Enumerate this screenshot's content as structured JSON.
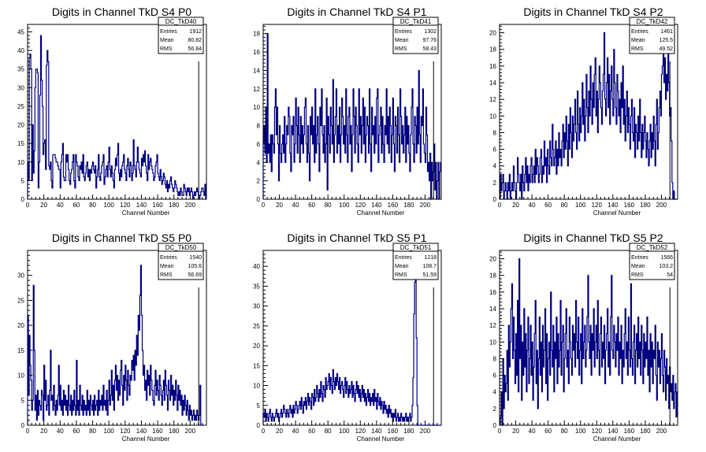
{
  "chart_data": [
    {
      "type": "histogram",
      "title": "Digits in Channel TkD S4 P0",
      "xlabel": "Channel Number",
      "xlim": [
        0,
        220
      ],
      "ylim": [
        0,
        47
      ],
      "xticks": [
        0,
        20,
        40,
        60,
        80,
        100,
        120,
        140,
        160,
        180,
        200
      ],
      "yticks": [
        0,
        5,
        10,
        15,
        20,
        25,
        30,
        35,
        40,
        45
      ],
      "stats": {
        "name": "DC_TkD40",
        "entries": "1912",
        "mean": "80.82",
        "rms": "56.84"
      },
      "values": [
        10,
        5,
        38,
        39,
        35,
        5,
        20,
        7,
        13,
        30,
        35,
        35,
        34,
        3,
        10,
        28,
        44,
        32,
        25,
        12,
        15,
        16,
        8,
        36,
        40,
        37,
        9,
        8,
        10,
        5,
        3,
        12,
        12,
        12,
        11,
        10,
        10,
        9,
        8,
        8,
        3,
        10,
        12,
        15,
        6,
        5,
        5,
        12,
        10,
        12,
        8,
        5,
        4,
        7,
        8,
        10,
        12,
        5,
        3,
        12,
        10,
        9,
        6,
        5,
        9,
        8,
        10,
        7,
        12,
        6,
        5,
        7,
        9,
        10,
        6,
        8,
        5,
        8,
        7,
        9,
        10,
        8,
        7,
        9,
        3,
        6,
        8,
        12,
        6,
        5,
        7,
        9,
        10,
        12,
        4,
        6,
        8,
        9,
        6,
        10,
        14,
        8,
        6,
        9,
        7,
        5,
        3,
        8,
        11,
        9,
        12,
        15,
        7,
        5,
        8,
        6,
        9,
        10,
        12,
        8,
        7,
        5,
        9,
        11,
        8,
        6,
        10,
        9,
        5,
        7,
        16,
        9,
        8,
        6,
        10,
        14,
        10,
        8,
        7,
        6,
        11,
        9,
        12,
        10,
        13,
        9,
        7,
        5,
        12,
        8,
        10,
        11,
        9,
        8,
        7,
        5,
        6,
        9,
        10,
        12,
        7,
        6,
        5,
        8,
        6,
        4,
        5,
        7,
        6,
        4,
        3,
        5,
        2,
        4,
        3,
        5,
        6,
        4,
        3,
        2,
        3,
        5,
        4,
        3,
        2,
        1,
        2,
        1,
        3,
        2,
        1,
        1,
        4,
        3,
        2,
        1,
        3,
        2,
        3,
        1,
        2,
        3,
        2,
        0,
        1,
        2,
        1,
        2,
        3,
        2,
        1,
        0,
        1,
        2,
        3,
        3,
        2,
        1,
        4,
        0
      ],
      "mark_x": 210
    },
    {
      "type": "histogram",
      "title": "Digits in Channel TkD S4 P1",
      "xlabel": "Channel Number",
      "xlim": [
        0,
        220
      ],
      "ylim": [
        0,
        19
      ],
      "xticks": [
        0,
        20,
        40,
        60,
        80,
        100,
        120,
        140,
        160,
        180,
        200
      ],
      "yticks": [
        0,
        2,
        4,
        6,
        8,
        10,
        12,
        14,
        16,
        18
      ],
      "stats": {
        "name": "DC_TkD41",
        "entries": "1302",
        "mean": "97.76",
        "rms": "58.43"
      },
      "values": [
        6,
        8,
        5,
        10,
        4,
        18,
        5,
        6,
        4,
        7,
        3,
        7,
        6,
        5,
        10,
        12,
        7,
        10,
        6,
        2,
        8,
        5,
        4,
        6,
        7,
        5,
        9,
        4,
        6,
        8,
        7,
        10,
        9,
        5,
        3,
        8,
        7,
        9,
        4,
        6,
        11,
        8,
        5,
        10,
        7,
        4,
        9,
        6,
        8,
        5,
        7,
        10,
        11,
        6,
        4,
        8,
        5,
        2,
        9,
        7,
        10,
        6,
        8,
        4,
        12,
        5,
        7,
        9,
        6,
        3,
        10,
        8,
        12,
        7,
        5,
        8,
        4,
        6,
        11,
        1,
        9,
        7,
        5,
        10,
        8,
        6,
        13,
        4,
        7,
        9,
        12,
        5,
        8,
        6,
        10,
        4,
        7,
        11,
        9,
        6,
        8,
        5,
        12,
        7,
        4,
        9,
        10,
        6,
        8,
        3,
        7,
        12,
        9,
        5,
        10,
        8,
        6,
        4,
        12,
        7,
        9,
        5,
        8,
        11,
        6,
        10,
        4,
        7,
        9,
        8,
        5,
        12,
        6,
        3,
        10,
        7,
        8,
        5,
        9,
        6,
        11,
        12,
        4,
        7,
        8,
        10,
        5,
        9,
        6,
        4,
        8,
        7,
        12,
        6,
        9,
        5,
        10,
        8,
        4,
        7,
        11,
        6,
        3,
        9,
        8,
        5,
        10,
        7,
        4,
        12,
        9,
        6,
        8,
        5,
        7,
        10,
        4,
        9,
        6,
        8,
        5,
        3,
        7,
        10,
        12,
        6,
        4,
        9,
        8,
        5,
        10,
        6,
        14,
        7,
        4,
        9,
        8,
        12,
        6,
        5,
        4,
        10,
        7,
        3,
        4,
        2,
        5,
        0,
        4,
        2,
        3,
        6,
        1,
        4,
        0,
        2,
        4,
        0,
        3,
        4
      ],
      "mark_x": 210
    },
    {
      "type": "histogram",
      "title": "Digits in Channel TkD S4 P2",
      "xlabel": "Channel Number",
      "xlim": [
        0,
        220
      ],
      "ylim": [
        0,
        21
      ],
      "xticks": [
        0,
        20,
        40,
        60,
        80,
        100,
        120,
        140,
        160,
        180,
        200
      ],
      "yticks": [
        0,
        2,
        4,
        6,
        8,
        10,
        12,
        14,
        16,
        18,
        20
      ],
      "stats": {
        "name": "DC_TkD42",
        "entries": "1461",
        "mean": "125.5",
        "rms": "49.52"
      },
      "values": [
        0,
        3,
        1,
        2,
        3,
        0,
        1,
        2,
        1,
        0,
        2,
        1,
        3,
        0,
        1,
        2,
        1,
        4,
        2,
        1,
        0,
        2,
        5,
        3,
        2,
        1,
        3,
        0,
        4,
        2,
        1,
        3,
        5,
        2,
        4,
        1,
        3,
        2,
        4,
        5,
        2,
        3,
        4,
        2,
        6,
        3,
        5,
        4,
        2,
        3,
        5,
        6,
        2,
        4,
        3,
        7,
        4,
        5,
        2,
        6,
        4,
        3,
        7,
        5,
        4,
        9,
        6,
        4,
        5,
        7,
        3,
        6,
        4,
        8,
        5,
        6,
        4,
        7,
        9,
        5,
        8,
        6,
        10,
        7,
        4,
        9,
        6,
        11,
        8,
        5,
        10,
        7,
        9,
        12,
        8,
        6,
        13,
        9,
        7,
        11,
        8,
        10,
        14,
        9,
        12,
        7,
        10,
        15,
        11,
        8,
        13,
        10,
        16,
        12,
        9,
        14,
        11,
        15,
        17,
        10,
        13,
        8,
        12,
        16,
        14,
        11,
        9,
        13,
        15,
        20,
        12,
        10,
        14,
        17,
        11,
        15,
        9,
        13,
        16,
        12,
        10,
        18,
        14,
        11,
        9,
        15,
        13,
        10,
        12,
        8,
        14,
        11,
        16,
        9,
        12,
        7,
        10,
        13,
        8,
        11,
        9,
        6,
        10,
        12,
        8,
        7,
        11,
        5,
        9,
        8,
        6,
        10,
        7,
        12,
        8,
        5,
        9,
        6,
        8,
        10,
        7,
        5,
        8,
        6,
        4,
        7,
        9,
        5,
        8,
        6,
        10,
        7,
        4,
        9,
        12,
        6,
        8,
        11,
        13,
        10,
        15,
        16,
        18,
        14,
        17,
        12,
        15,
        13,
        18,
        14,
        10,
        11,
        7,
        2,
        0,
        1,
        0,
        0,
        0,
        0
      ],
      "mark_x": 210
    },
    {
      "type": "histogram",
      "title": "Digits in Channel TkD S5 P0",
      "xlabel": "Channel Number",
      "xlim": [
        0,
        220
      ],
      "ylim": [
        0,
        35
      ],
      "xticks": [
        0,
        20,
        40,
        60,
        80,
        100,
        120,
        140,
        160,
        180,
        200
      ],
      "yticks": [
        0,
        5,
        10,
        15,
        20,
        25,
        30
      ],
      "stats": {
        "name": "DC_TkD50",
        "entries": "1540",
        "mean": "105.6",
        "rms": "56.69"
      },
      "values": [
        22,
        6,
        18,
        12,
        9,
        3,
        5,
        28,
        15,
        3,
        6,
        1,
        7,
        2,
        5,
        4,
        3,
        7,
        6,
        1,
        12,
        5,
        9,
        3,
        4,
        6,
        2,
        7,
        15,
        5,
        6,
        3,
        8,
        4,
        2,
        5,
        3,
        6,
        12,
        4,
        8,
        3,
        5,
        2,
        7,
        4,
        6,
        3,
        5,
        2,
        8,
        4,
        3,
        6,
        2,
        5,
        3,
        7,
        4,
        2,
        13,
        3,
        5,
        2,
        8,
        4,
        3,
        6,
        2,
        5,
        3,
        4,
        2,
        7,
        3,
        5,
        2,
        6,
        4,
        3,
        5,
        2,
        6,
        3,
        4,
        5,
        2,
        7,
        3,
        5,
        4,
        6,
        3,
        8,
        4,
        5,
        3,
        7,
        2,
        5,
        9,
        4,
        6,
        11,
        5,
        8,
        3,
        9,
        12,
        7,
        10,
        5,
        9,
        6,
        11,
        13,
        8,
        4,
        10,
        7,
        12,
        9,
        5,
        11,
        8,
        6,
        10,
        9,
        13,
        11,
        14,
        9,
        15,
        12,
        18,
        14,
        22,
        19,
        26,
        32,
        22,
        15,
        10,
        12,
        7,
        9,
        5,
        11,
        8,
        10,
        6,
        12,
        9,
        7,
        5,
        4,
        8,
        11,
        6,
        9,
        7,
        5,
        10,
        8,
        6,
        4,
        7,
        9,
        5,
        11,
        8,
        6,
        3,
        9,
        7,
        5,
        10,
        6,
        8,
        4,
        7,
        5,
        9,
        6,
        3,
        8,
        5,
        7,
        4,
        6,
        2,
        5,
        3,
        6,
        4,
        2,
        5,
        3,
        1,
        4,
        2,
        3,
        1,
        2,
        3,
        1,
        2,
        1,
        3,
        2,
        1,
        2,
        8,
        0,
        0,
        0
      ],
      "mark_x": 210
    },
    {
      "type": "histogram",
      "title": "Digits in Channel TkD S5 P1",
      "xlabel": "Channel Number",
      "xlim": [
        0,
        220
      ],
      "ylim": [
        0,
        44
      ],
      "xticks": [
        0,
        20,
        40,
        60,
        80,
        100,
        120,
        140,
        160,
        180,
        200
      ],
      "yticks": [
        0,
        5,
        10,
        15,
        20,
        25,
        30,
        35,
        40
      ],
      "stats": {
        "name": "DC_TkD51",
        "entries": "1218",
        "mean": "108.7",
        "rms": "51.59"
      },
      "values": [
        3,
        2,
        4,
        1,
        3,
        2,
        1,
        3,
        4,
        2,
        1,
        3,
        2,
        1,
        2,
        3,
        4,
        2,
        3,
        1,
        2,
        3,
        4,
        2,
        3,
        5,
        4,
        3,
        2,
        4,
        3,
        2,
        4,
        5,
        3,
        4,
        2,
        5,
        3,
        4,
        6,
        5,
        3,
        4,
        5,
        6,
        4,
        7,
        5,
        3,
        6,
        5,
        7,
        4,
        6,
        8,
        5,
        7,
        6,
        4,
        8,
        7,
        5,
        9,
        6,
        7,
        10,
        8,
        6,
        9,
        7,
        11,
        8,
        6,
        10,
        9,
        7,
        12,
        9,
        10,
        11,
        13,
        9,
        12,
        10,
        8,
        14,
        11,
        9,
        12,
        10,
        13,
        11,
        9,
        12,
        8,
        10,
        11,
        9,
        7,
        10,
        12,
        8,
        11,
        9,
        7,
        10,
        8,
        9,
        11,
        7,
        10,
        8,
        6,
        9,
        11,
        8,
        10,
        7,
        9,
        6,
        8,
        10,
        7,
        9,
        6,
        8,
        5,
        7,
        9,
        6,
        8,
        5,
        7,
        6,
        8,
        5,
        9,
        6,
        7,
        4,
        8,
        6,
        5,
        7,
        4,
        6,
        5,
        3,
        6,
        4,
        5,
        3,
        4,
        2,
        5,
        3,
        4,
        2,
        3,
        1,
        3,
        2,
        4,
        1,
        2,
        3,
        1,
        2,
        1,
        3,
        2,
        1,
        2,
        1,
        2,
        3,
        1,
        2,
        1,
        2,
        3,
        1,
        2,
        5,
        12,
        28,
        36,
        40,
        22,
        5,
        0,
        0,
        0,
        0,
        0,
        0,
        0,
        0,
        0,
        0,
        0,
        0,
        0,
        0,
        0,
        0,
        0,
        0,
        0,
        0,
        0,
        0,
        0,
        0,
        0,
        0,
        0,
        0,
        0
      ],
      "mark_x": 210
    },
    {
      "type": "histogram",
      "title": "Digits in Channel TkD S5 P2",
      "xlabel": "Channel Number",
      "xlim": [
        0,
        220
      ],
      "ylim": [
        0,
        21
      ],
      "xticks": [
        0,
        20,
        40,
        60,
        80,
        100,
        120,
        140,
        160,
        180,
        200
      ],
      "yticks": [
        0,
        2,
        4,
        6,
        8,
        10,
        12,
        14,
        16,
        18,
        20
      ],
      "stats": {
        "name": "DC_TkD52",
        "entries": "1566",
        "mean": "103.2",
        "rms": "54"
      },
      "values": [
        0,
        1,
        4,
        0,
        8,
        2,
        6,
        4,
        5,
        9,
        3,
        12,
        7,
        10,
        14,
        17,
        8,
        13,
        9,
        5,
        11,
        6,
        15,
        4,
        20,
        8,
        12,
        3,
        10,
        6,
        14,
        7,
        11,
        4,
        9,
        13,
        5,
        8,
        12,
        6,
        10,
        3,
        7,
        11,
        15,
        5,
        9,
        2,
        8,
        13,
        6,
        10,
        4,
        12,
        7,
        9,
        14,
        5,
        11,
        3,
        8,
        10,
        6,
        16,
        9,
        7,
        12,
        4,
        10,
        8,
        13,
        5,
        11,
        7,
        9,
        15,
        6,
        10,
        12,
        4,
        8,
        11,
        14,
        7,
        9,
        5,
        13,
        10,
        8,
        6,
        12,
        9,
        11,
        7,
        15,
        10,
        8,
        13,
        6,
        9,
        11,
        5,
        14,
        8,
        10,
        12,
        7,
        9,
        13,
        18,
        10,
        8,
        12,
        6,
        11,
        9,
        14,
        7,
        10,
        12,
        8,
        15,
        9,
        6,
        11,
        13,
        7,
        10,
        8,
        12,
        5,
        9,
        11,
        14,
        7,
        10,
        6,
        13,
        18,
        9,
        8,
        12,
        10,
        7,
        11,
        9,
        13,
        6,
        10,
        8,
        12,
        5,
        9,
        7,
        11,
        14,
        8,
        10,
        6,
        13,
        9,
        7,
        17,
        8,
        6,
        10,
        12,
        5,
        9,
        11,
        7,
        13,
        8,
        10,
        6,
        12,
        9,
        5,
        11,
        7,
        10,
        8,
        13,
        6,
        9,
        4,
        11,
        7,
        10,
        5,
        9,
        8,
        12,
        6,
        3,
        10,
        7,
        9,
        5,
        8,
        11,
        6,
        4,
        9,
        7,
        3,
        8,
        5,
        6,
        2,
        7,
        4,
        5,
        3,
        6,
        2,
        4,
        5,
        1,
        4
      ],
      "mark_x": 210
    }
  ]
}
